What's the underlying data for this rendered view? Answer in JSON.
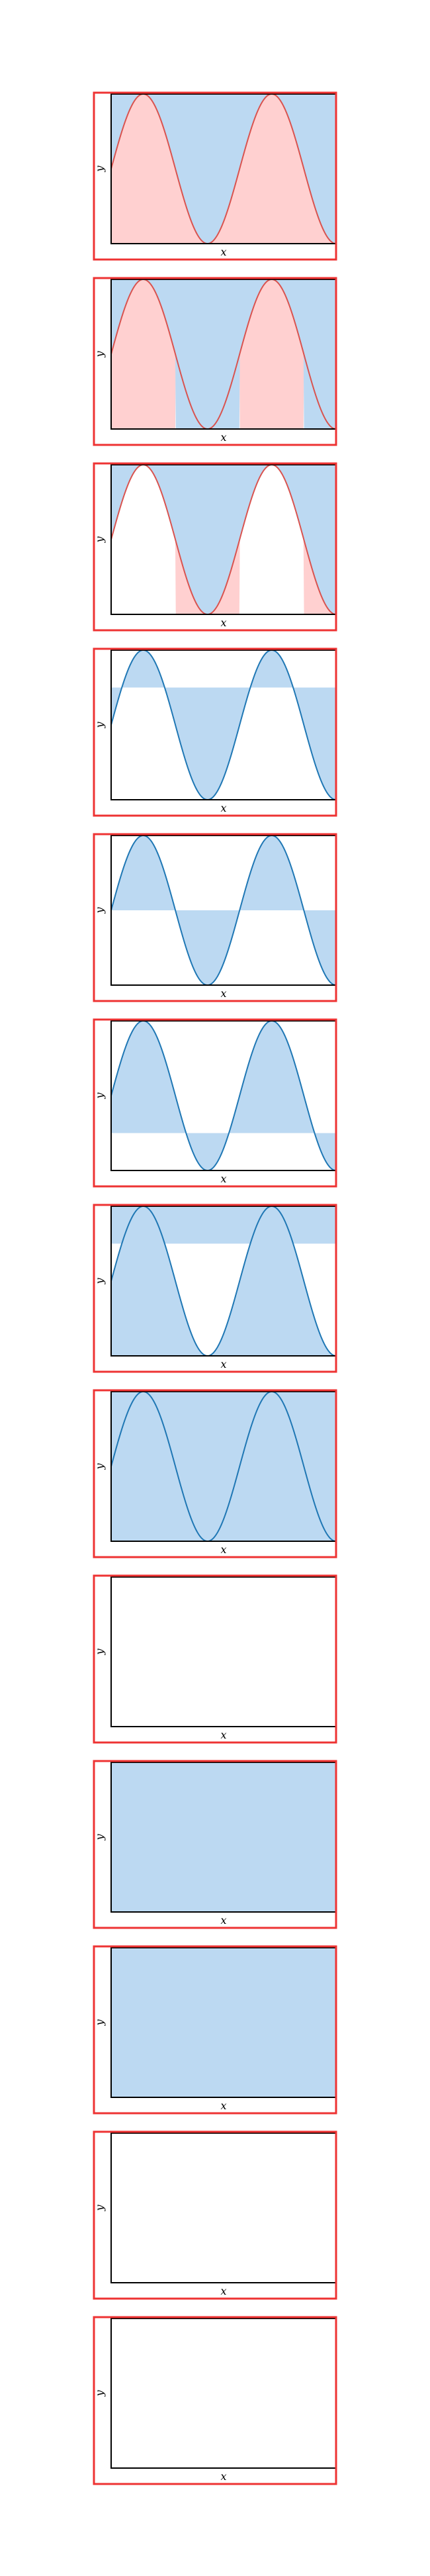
{
  "chart_data": {
    "type": "line",
    "xlabel": "x",
    "ylabel": "y",
    "xlim": [
      0,
      2.2
    ],
    "ylim": [
      -1,
      1
    ],
    "function": "sin(5x)",
    "colors": {
      "red_line": "#d9534f",
      "red_fill": "#ffd0d0",
      "blue_line": "#1f77b4",
      "blue_fill": "#bcd9f2",
      "frame": "#000000",
      "border": "#ee3333"
    },
    "panels": [
      {
        "line": "red",
        "fill_above": "blue",
        "fill_below": "red",
        "threshold": null
      },
      {
        "line": "red",
        "fill_above": "blue",
        "fill_below": "red",
        "threshold": 0
      },
      {
        "line": "red",
        "fill_above": "blue",
        "fill_below": "red",
        "threshold": 0,
        "mode": "inverse"
      },
      {
        "line": "blue",
        "fill_between": "blue",
        "threshold": 0.5
      },
      {
        "line": "blue",
        "fill_between": "blue",
        "threshold": 0
      },
      {
        "line": "blue",
        "fill_between": "blue",
        "threshold": -0.5,
        "mode": "shift"
      },
      {
        "line": "blue",
        "fill_above": "blue",
        "threshold": 0.5
      },
      {
        "line": "blue",
        "fill_below": "blue",
        "threshold": -0.5
      },
      {
        "line": "none",
        "fill": "none"
      },
      {
        "line": "none",
        "fill": "blue"
      },
      {
        "line": "none",
        "fill": "blue"
      },
      {
        "line": "none",
        "fill": "none"
      },
      {
        "line": "none",
        "fill": "none"
      }
    ]
  }
}
